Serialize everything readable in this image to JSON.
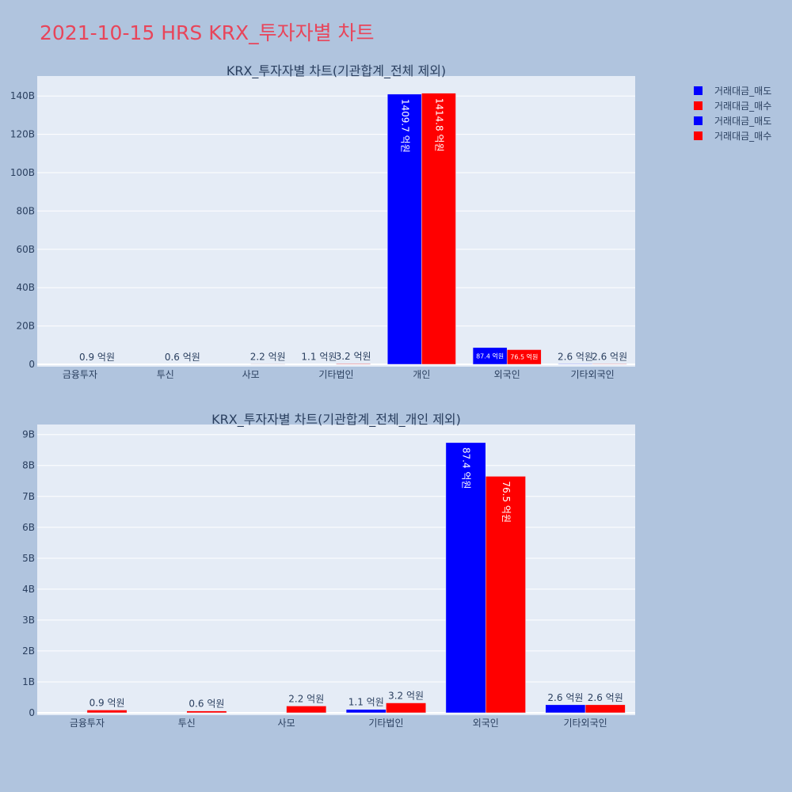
{
  "title": "2021-10-15 HRS KRX_투자자별 차트",
  "legend": [
    {
      "label": "거래대금_매도",
      "color": "#0000ff"
    },
    {
      "label": "거래대금_매수",
      "color": "#ff0000"
    },
    {
      "label": "거래대금_매도",
      "color": "#0000ff"
    },
    {
      "label": "거래대금_매수",
      "color": "#ff0000"
    }
  ],
  "chart_data": [
    {
      "type": "bar",
      "title": "KRX_투자자별 차트(기관합계_전체 제외)",
      "categories": [
        "금융투자",
        "투신",
        "사모",
        "기타법인",
        "개인",
        "외국인",
        "기타외국인"
      ],
      "y_tick_labels": [
        "0",
        "20B",
        "40B",
        "60B",
        "80B",
        "100B",
        "120B",
        "140B"
      ],
      "ylim": [
        0,
        150
      ],
      "y_unit": "B",
      "series": [
        {
          "name": "거래대금_매도",
          "color": "#0000ff",
          "values": [
            0.0,
            0.0,
            0.0,
            0.11,
            140.97,
            8.74,
            0.26
          ],
          "labels": [
            "",
            "",
            "",
            "1.1 억원",
            "1409.7 억원",
            "87.4 억원",
            "2.6 억원"
          ]
        },
        {
          "name": "거래대금_매수",
          "color": "#ff0000",
          "values": [
            0.09,
            0.06,
            0.22,
            0.32,
            141.48,
            7.65,
            0.26
          ],
          "labels": [
            "0.9 억원",
            "0.6 억원",
            "2.2 억원",
            "3.2 억원",
            "1414.8 억원",
            "76.5 억원",
            "2.6 억원"
          ]
        }
      ]
    },
    {
      "type": "bar",
      "title": "KRX_투자자별 차트(기관합계_전체_개인 제외)",
      "categories": [
        "금융투자",
        "투신",
        "사모",
        "기타법인",
        "외국인",
        "기타외국인"
      ],
      "y_tick_labels": [
        "0",
        "1B",
        "2B",
        "3B",
        "4B",
        "5B",
        "6B",
        "7B",
        "8B",
        "9B"
      ],
      "ylim": [
        0,
        9.3
      ],
      "y_unit": "B",
      "series": [
        {
          "name": "거래대금_매도",
          "color": "#0000ff",
          "values": [
            0.0,
            0.0,
            0.0,
            0.11,
            8.74,
            0.26
          ],
          "labels": [
            "",
            "",
            "",
            "1.1 억원",
            "87.4 억원",
            "2.6 억원"
          ]
        },
        {
          "name": "거래대금_매수",
          "color": "#ff0000",
          "values": [
            0.09,
            0.06,
            0.22,
            0.32,
            7.65,
            0.26
          ],
          "labels": [
            "0.9 억원",
            "0.6 억원",
            "2.2 억원",
            "3.2 억원",
            "76.5 억원",
            "2.6 억원"
          ]
        }
      ]
    }
  ]
}
